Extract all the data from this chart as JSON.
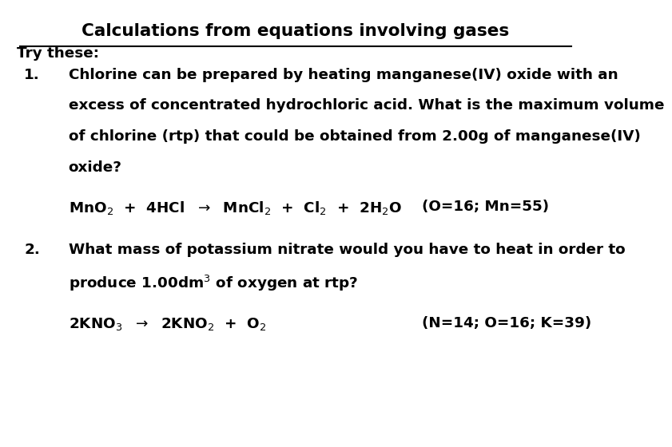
{
  "title": "Calculations from equations involving gases",
  "background_color": "#ffffff",
  "text_color": "#000000",
  "font_family": "DejaVu Sans",
  "title_fontsize": 15.5,
  "body_fontsize": 13.2,
  "eq_fontsize": 13.2,
  "try_these": "Try these:",
  "num1": "1.",
  "num2": "2.",
  "q1_lines": [
    "Chlorine can be prepared by heating manganese(IV) oxide with an",
    "excess of concentrated hydrochloric acid. What is the maximum volume",
    "of chlorine (rtp) that could be obtained from 2.00g of manganese(IV)",
    "oxide?"
  ],
  "eq1": "MnO$_2$  +  4HCl  $\\rightarrow$  MnCl$_2$  +  Cl$_2$  +  2H$_2$O",
  "eq1_note": "(O=16; Mn=55)",
  "q2_lines": [
    "What mass of potassium nitrate would you have to heat in order to",
    "produce 1.00dm$^3$ of oxygen at rtp?"
  ],
  "eq2": "2KNO$_3$  $\\rightarrow$  2KNO$_2$  +  O$_2$",
  "eq2_note": "(N=14; O=16; K=39)"
}
